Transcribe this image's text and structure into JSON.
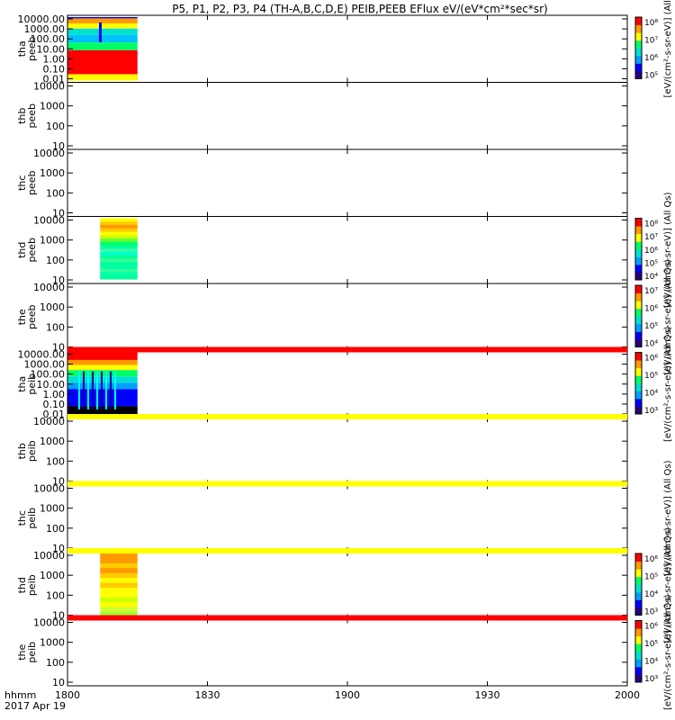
{
  "chart_data": {
    "type": "heatmap",
    "title": "P5, P1, P2, P3, P4 (TH-A,B,C,D,E) PEIB,PEEB EFlux eV/(eV*cm²*sec*sr)",
    "x_ticks": [
      "1800",
      "1830",
      "1900",
      "1930",
      "2000"
    ],
    "x_corner_label": "hhmm",
    "date_label": "2017 Apr 19",
    "colorbar_colors": [
      "#2a0078",
      "#0000ff",
      "#00a0ff",
      "#00e0d0",
      "#00ff66",
      "#ffff00",
      "#ff9900",
      "#ff0000"
    ],
    "panels": [
      {
        "label": [
          "tha",
          "peeb"
        ],
        "ylim": [
          0.01,
          10000
        ],
        "yticks": [
          "10000.00",
          "1000.00",
          "100.00",
          "10.00",
          "1.00",
          "0.10",
          "0.01"
        ],
        "data_span": [
          "1800",
          "1815"
        ],
        "cbar": true,
        "cbar_ticks": [
          "10⁸",
          "10⁷",
          "10⁶",
          "10⁵"
        ],
        "cbar_label": "[eV/(cm²-s-sr-eV)] (All"
      },
      {
        "label": [
          "thb",
          "peeb"
        ],
        "ylim": [
          10,
          10000
        ],
        "yticks": [
          "10000",
          "1000",
          "100",
          "10"
        ],
        "data_span": null,
        "cbar": false
      },
      {
        "label": [
          "thc",
          "peeb"
        ],
        "ylim": [
          10,
          10000
        ],
        "yticks": [
          "10000",
          "1000",
          "100",
          "10"
        ],
        "data_span": null,
        "cbar": false
      },
      {
        "label": [
          "thd",
          "peeb"
        ],
        "ylim": [
          10,
          10000
        ],
        "yticks": [
          "10000",
          "1000",
          "100",
          "10"
        ],
        "data_span": [
          "1807",
          "1815"
        ],
        "cbar": true,
        "cbar_ticks": [
          "10⁸",
          "10⁷",
          "10⁶",
          "10⁵",
          "10⁴"
        ],
        "cbar_label": "[eV/(cm²-s-sr-eV)] (All Qs)"
      },
      {
        "label": [
          "the",
          "peeb"
        ],
        "ylim": [
          10,
          10000
        ],
        "yticks": [
          "10000",
          "1000",
          "100",
          "10"
        ],
        "data_span": null,
        "cbar": true,
        "cbar_ticks": [
          "10⁷",
          "10⁶",
          "10⁵",
          "10⁴"
        ],
        "cbar_label": "[eV/(cm²-s-sr-eV)] (All Qs)"
      },
      {
        "label": [
          "tha",
          "peib"
        ],
        "ylim": [
          0.01,
          10000
        ],
        "yticks": [
          "10000.00",
          "1000.00",
          "100.00",
          "10.00",
          "1.00",
          "0.10",
          "0.01"
        ],
        "data_span": [
          "1800",
          "1815"
        ],
        "cbar": true,
        "cbar_ticks": [
          "10⁶",
          "10⁵",
          "10⁴",
          "10³"
        ],
        "cbar_label": "[eV/(cm²-s-sr-eV)] (All Qs)"
      },
      {
        "label": [
          "thb",
          "peib"
        ],
        "ylim": [
          10,
          10000
        ],
        "yticks": [
          "10000",
          "1000",
          "100",
          "10"
        ],
        "data_span": null,
        "cbar": false
      },
      {
        "label": [
          "thc",
          "peib"
        ],
        "ylim": [
          10,
          10000
        ],
        "yticks": [
          "10000",
          "1000",
          "100",
          "10"
        ],
        "data_span": null,
        "cbar": false,
        "cbar_label": "[eV/(cm²-s-sr-eV)] (All Qs)"
      },
      {
        "label": [
          "thd",
          "peib"
        ],
        "ylim": [
          10,
          10000
        ],
        "yticks": [
          "10000",
          "1000",
          "100",
          "10"
        ],
        "data_span": [
          "1807",
          "1815"
        ],
        "cbar": true,
        "cbar_ticks": [
          "10⁶",
          "10⁵",
          "10⁴",
          "10³"
        ],
        "cbar_label": "[eV/(cm²-s-sr-eV)] (All Qs)"
      },
      {
        "label": [
          "the",
          "peib"
        ],
        "ylim": [
          10,
          10000
        ],
        "yticks": [
          "10000",
          "1000",
          "100",
          "10"
        ],
        "data_span": null,
        "cbar": true,
        "cbar_ticks": [
          "10⁶",
          "10⁵",
          "10⁴",
          "10³"
        ],
        "cbar_label": "[eV/(cm²-s-sr-eV)] (All Qs)"
      }
    ]
  }
}
